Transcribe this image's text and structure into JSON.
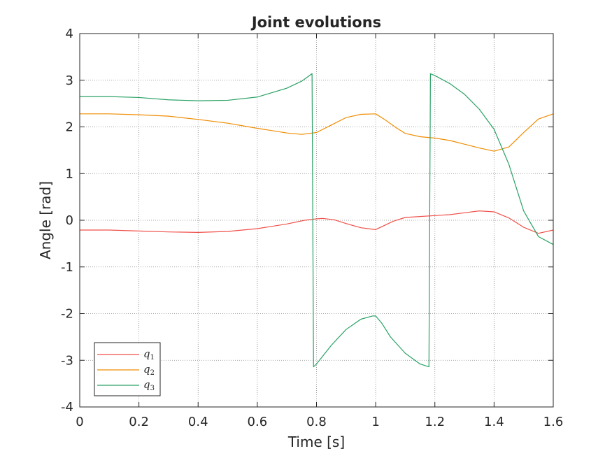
{
  "chart_data": {
    "type": "line",
    "title": "Joint evolutions",
    "xlabel": "Time [s]",
    "ylabel": "Angle [rad]",
    "xlim": [
      0,
      1.6
    ],
    "ylim": [
      -4,
      4
    ],
    "xticks": [
      0,
      0.2,
      0.4,
      0.6,
      0.8,
      1,
      1.2,
      1.4,
      1.6
    ],
    "yticks": [
      -4,
      -3,
      -2,
      -1,
      0,
      1,
      2,
      3,
      4
    ],
    "xtick_labels": [
      "0",
      "0.2",
      "0.4",
      "0.6",
      "0.8",
      "1",
      "1.2",
      "1.4",
      "1.6"
    ],
    "ytick_labels": [
      "-4",
      "-3",
      "-2",
      "-1",
      "0",
      "1",
      "2",
      "3",
      "4"
    ],
    "grid": true,
    "legend_position": "bottom-left",
    "series": [
      {
        "name": "q1",
        "color": "#f0504a",
        "x": [
          0,
          0.1,
          0.2,
          0.3,
          0.4,
          0.5,
          0.6,
          0.7,
          0.76,
          0.8,
          0.82,
          0.86,
          0.9,
          0.95,
          1.0,
          1.02,
          1.06,
          1.1,
          1.15,
          1.2,
          1.25,
          1.3,
          1.35,
          1.4,
          1.45,
          1.5,
          1.55,
          1.6
        ],
        "y": [
          -0.21,
          -0.21,
          -0.23,
          -0.25,
          -0.26,
          -0.24,
          -0.18,
          -0.08,
          0.0,
          0.03,
          0.04,
          0.01,
          -0.07,
          -0.16,
          -0.2,
          -0.14,
          -0.02,
          0.06,
          0.08,
          0.1,
          0.12,
          0.16,
          0.2,
          0.18,
          0.05,
          -0.15,
          -0.28,
          -0.21
        ]
      },
      {
        "name": "q2",
        "color": "#f08c00",
        "x": [
          0,
          0.1,
          0.2,
          0.3,
          0.4,
          0.5,
          0.6,
          0.7,
          0.75,
          0.8,
          0.85,
          0.9,
          0.95,
          1.0,
          1.03,
          1.07,
          1.1,
          1.15,
          1.2,
          1.25,
          1.3,
          1.35,
          1.4,
          1.45,
          1.5,
          1.55,
          1.6
        ],
        "y": [
          2.28,
          2.28,
          2.26,
          2.23,
          2.16,
          2.08,
          1.97,
          1.87,
          1.84,
          1.88,
          2.04,
          2.2,
          2.27,
          2.28,
          2.16,
          1.98,
          1.86,
          1.79,
          1.76,
          1.71,
          1.63,
          1.55,
          1.48,
          1.57,
          1.88,
          2.17,
          2.28
        ]
      },
      {
        "name": "q3",
        "color": "#2ba266",
        "x": [
          0,
          0.1,
          0.2,
          0.3,
          0.4,
          0.5,
          0.6,
          0.7,
          0.75,
          0.785,
          0.79,
          0.8,
          0.85,
          0.9,
          0.95,
          0.99,
          1.0,
          1.02,
          1.05,
          1.1,
          1.15,
          1.18,
          1.185,
          1.2,
          1.25,
          1.3,
          1.35,
          1.4,
          1.45,
          1.5,
          1.55,
          1.6
        ],
        "y": [
          2.65,
          2.65,
          2.63,
          2.58,
          2.56,
          2.57,
          2.64,
          2.83,
          2.98,
          3.14,
          -3.14,
          -3.08,
          -2.68,
          -2.34,
          -2.12,
          -2.05,
          -2.05,
          -2.2,
          -2.5,
          -2.85,
          -3.08,
          -3.14,
          3.14,
          3.1,
          2.93,
          2.7,
          2.38,
          1.95,
          1.2,
          0.2,
          -0.35,
          -0.52
        ]
      }
    ]
  },
  "legend": {
    "entries": [
      {
        "base": "q",
        "sub": "1"
      },
      {
        "base": "q",
        "sub": "2"
      },
      {
        "base": "q",
        "sub": "3"
      }
    ]
  }
}
